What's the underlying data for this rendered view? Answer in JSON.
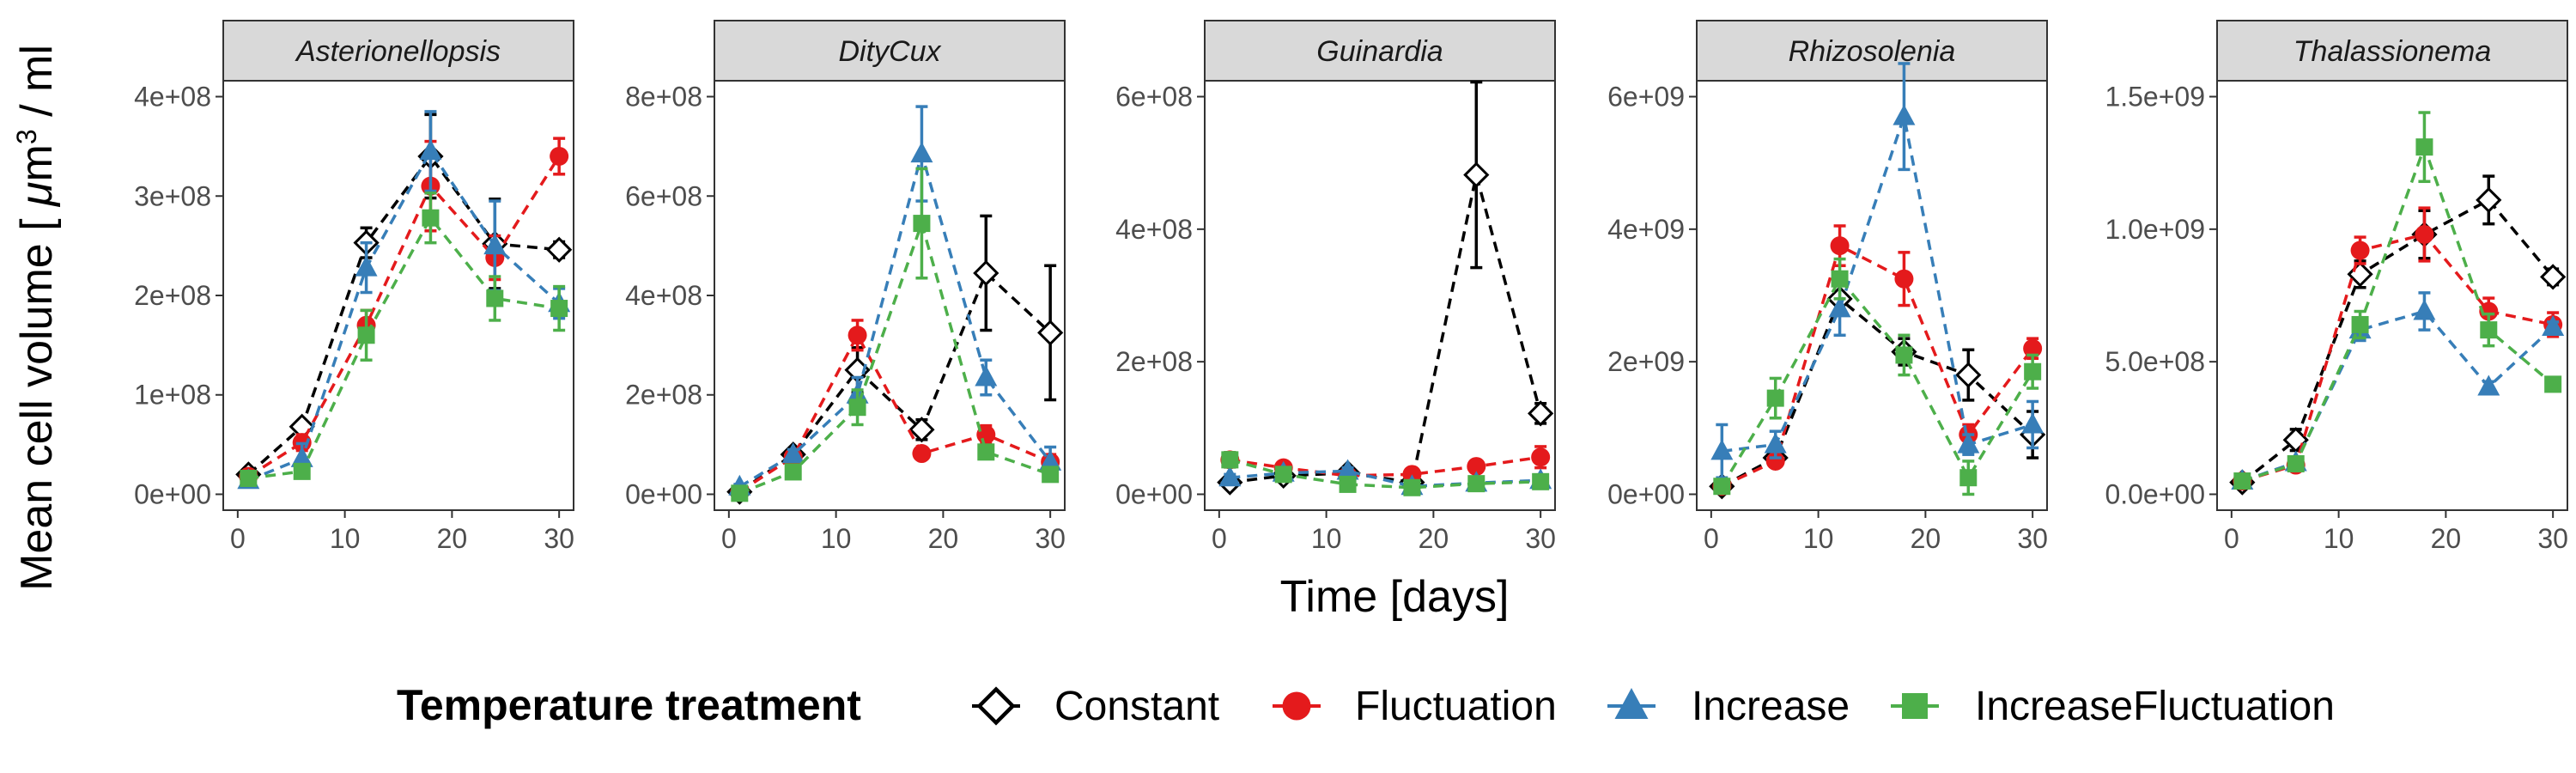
{
  "chart_data": {
    "type": "line",
    "facets": [
      {
        "title": "Asterionellopsis",
        "ylim": [
          0,
          400000000.0
        ],
        "yticks": [
          0,
          100000000.0,
          200000000.0,
          300000000.0,
          400000000.0
        ],
        "yticklabels": [
          "0e+00",
          "1e+08",
          "2e+08",
          "3e+08",
          "4e+08"
        ]
      },
      {
        "title": "DityCux",
        "ylim": [
          0,
          800000000.0
        ],
        "yticks": [
          0,
          200000000.0,
          400000000.0,
          600000000.0,
          800000000.0
        ],
        "yticklabels": [
          "0e+00",
          "2e+08",
          "4e+08",
          "6e+08",
          "8e+08"
        ]
      },
      {
        "title": "Guinardia",
        "ylim": [
          0,
          600000000.0
        ],
        "yticks": [
          0,
          200000000.0,
          400000000.0,
          600000000.0
        ],
        "yticklabels": [
          "0e+00",
          "2e+08",
          "4e+08",
          "6e+08"
        ]
      },
      {
        "title": "Rhizosolenia",
        "ylim": [
          0,
          6000000000.0
        ],
        "yticks": [
          0,
          2000000000.0,
          4000000000.0,
          6000000000.0
        ],
        "yticklabels": [
          "0e+00",
          "2e+09",
          "4e+09",
          "6e+09"
        ]
      },
      {
        "title": "Thalassionema",
        "ylim": [
          0,
          1500000000.0
        ],
        "yticks": [
          0,
          500000000.0,
          1000000000.0,
          1500000000.0
        ],
        "yticklabels": [
          "0.0e+00",
          "5.0e+08",
          "1.0e+09",
          "1.5e+09"
        ]
      }
    ],
    "x": [
      1,
      6,
      12,
      18,
      24,
      30
    ],
    "xlim": [
      0,
      30
    ],
    "xticks": [
      0,
      10,
      20,
      30
    ],
    "xticklabels": [
      "0",
      "10",
      "20",
      "30"
    ],
    "xlabel": "Time [days]",
    "ylabel_prefix": "Mean cell volume [ ",
    "ylabel_mu": "μ",
    "ylabel_unit": "m",
    "ylabel_sup": "3",
    "ylabel_suffix": " / ml",
    "legend": {
      "title": "Temperature treatment",
      "placement": "bottom"
    },
    "series": [
      {
        "name": "Constant",
        "color": "#000000",
        "marker": "diamond-open",
        "values": [
          [
            20000000.0,
            68000000.0,
            253000000.0,
            340000000.0,
            252000000.0,
            246000000.0
          ],
          [
            5000000.0,
            80000000.0,
            250000000.0,
            130000000.0,
            445000000.0,
            325000000.0
          ],
          [
            18000000.0,
            28000000.0,
            32000000.0,
            18000000.0,
            482000000.0,
            122000000.0
          ],
          [
            120000000.0,
            550000000.0,
            2950000000.0,
            2150000000.0,
            1800000000.0,
            900000000.0
          ],
          [
            45000000.0,
            205000000.0,
            830000000.0,
            980000000.0,
            1110000000.0,
            820000000.0
          ]
        ],
        "errors": [
          [
            3000000.0,
            5000000.0,
            15000000.0,
            42000000.0,
            45000000.0,
            8000000.0
          ],
          [
            5000000.0,
            10000000.0,
            45000000.0,
            20000000.0,
            115000000.0,
            135000000.0
          ],
          [
            3000000.0,
            4000000.0,
            5000000.0,
            4000000.0,
            140000000.0,
            15000000.0
          ],
          [
            80000000.0,
            80000000.0,
            250000000.0,
            200000000.0,
            380000000.0,
            350000000.0
          ],
          [
            10000000.0,
            40000000.0,
            50000000.0,
            90000000.0,
            90000000.0,
            30000000.0
          ]
        ]
      },
      {
        "name": "Fluctuation",
        "color": "#e41a1c",
        "marker": "circle",
        "values": [
          [
            18000000.0,
            52000000.0,
            170000000.0,
            310000000.0,
            238000000.0,
            340000000.0
          ],
          [
            5000000.0,
            75000000.0,
            320000000.0,
            82000000.0,
            120000000.0,
            65000000.0
          ],
          [
            52000000.0,
            40000000.0,
            28000000.0,
            30000000.0,
            42000000.0,
            56000000.0
          ],
          [
            120000000.0,
            500000000.0,
            3750000000.0,
            3250000000.0,
            900000000.0,
            2200000000.0
          ],
          [
            50000000.0,
            110000000.0,
            920000000.0,
            980000000.0,
            690000000.0,
            640000000.0
          ]
        ],
        "errors": [
          [
            3000000.0,
            8000000.0,
            15000000.0,
            45000000.0,
            22000000.0,
            18000000.0
          ],
          [
            3000000.0,
            10000000.0,
            30000000.0,
            8000000.0,
            18000000.0,
            15000000.0
          ],
          [
            11000000.0,
            6000000.0,
            4000000.0,
            6000000.0,
            5000000.0,
            16000000.0
          ],
          [
            50000000.0,
            80000000.0,
            300000000.0,
            400000000.0,
            150000000.0,
            150000000.0
          ],
          [
            6000000.0,
            20000000.0,
            50000000.0,
            100000000.0,
            50000000.0,
            45000000.0
          ]
        ]
      },
      {
        "name": "Increase",
        "color": "#377eb8",
        "marker": "triangle",
        "values": [
          [
            14000000.0,
            36000000.0,
            228000000.0,
            345000000.0,
            250000000.0,
            192000000.0
          ],
          [
            15000000.0,
            80000000.0,
            200000000.0,
            685000000.0,
            235000000.0,
            65000000.0
          ],
          [
            25000000.0,
            32000000.0,
            35000000.0,
            12000000.0,
            17000000.0,
            21000000.0
          ],
          [
            650000000.0,
            750000000.0,
            2800000000.0,
            5700000000.0,
            750000000.0,
            1050000000.0
          ],
          [
            50000000.0,
            120000000.0,
            620000000.0,
            690000000.0,
            405000000.0,
            630000000.0
          ]
        ],
        "errors": [
          [
            3000000.0,
            15000000.0,
            25000000.0,
            40000000.0,
            45000000.0,
            15000000.0
          ],
          [
            5000000.0,
            10000000.0,
            35000000.0,
            95000000.0,
            35000000.0,
            30000000.0
          ],
          [
            5000000.0,
            5000000.0,
            5000000.0,
            3000000.0,
            4000000.0,
            5000000.0
          ],
          [
            400000000.0,
            200000000.0,
            400000000.0,
            800000000.0,
            150000000.0,
            350000000.0
          ],
          [
            5000000.0,
            15000000.0,
            40000000.0,
            70000000.0,
            20000000.0,
            20000000.0
          ]
        ]
      },
      {
        "name": "IncreaseFluctuation",
        "color": "#4daf4a",
        "marker": "square",
        "values": [
          [
            16000000.0,
            23000000.0,
            160000000.0,
            278000000.0,
            197000000.0,
            187000000.0
          ],
          [
            2000000.0,
            45000000.0,
            175000000.0,
            545000000.0,
            85000000.0,
            40000000.0
          ],
          [
            52000000.0,
            30000000.0,
            15000000.0,
            10000000.0,
            16000000.0,
            19000000.0
          ],
          [
            120000000.0,
            1450000000.0,
            3250000000.0,
            2100000000.0,
            250000000.0,
            1850000000.0
          ],
          [
            50000000.0,
            115000000.0,
            640000000.0,
            1310000000.0,
            620000000.0,
            415000000.0
          ]
        ],
        "errors": [
          [
            3000000.0,
            5000000.0,
            25000000.0,
            25000000.0,
            22000000.0,
            22000000.0
          ],
          [
            3000000.0,
            8000000.0,
            35000000.0,
            110000000.0,
            10000000.0,
            10000000.0
          ],
          [
            11000000.0,
            5000000.0,
            5000000.0,
            3000000.0,
            4000000.0,
            4000000.0
          ],
          [
            50000000.0,
            300000000.0,
            300000000.0,
            300000000.0,
            250000000.0,
            250000000.0
          ],
          [
            5000000.0,
            15000000.0,
            50000000.0,
            130000000.0,
            60000000.0,
            20000000.0
          ]
        ]
      }
    ]
  }
}
